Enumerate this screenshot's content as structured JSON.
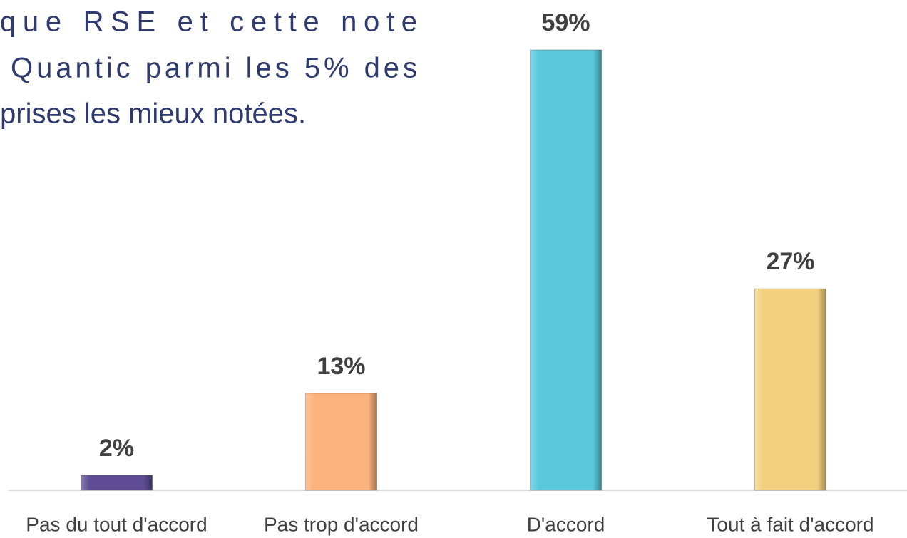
{
  "chart_data": {
    "type": "bar",
    "title_lines": [
      "que RSE et cette note",
      "Quantic parmi les 5% des",
      "prises les mieux notées."
    ],
    "categories": [
      "Pas du tout d'accord",
      "Pas trop d'accord",
      "D'accord",
      "Tout à fait d'accord"
    ],
    "values": [
      2,
      13,
      59,
      27
    ],
    "value_labels": [
      "2%",
      "13%",
      "59%",
      "27%"
    ],
    "colors": [
      "#5e4d94",
      "#fbb27c",
      "#5bc9dd",
      "#f3d07f"
    ]
  }
}
